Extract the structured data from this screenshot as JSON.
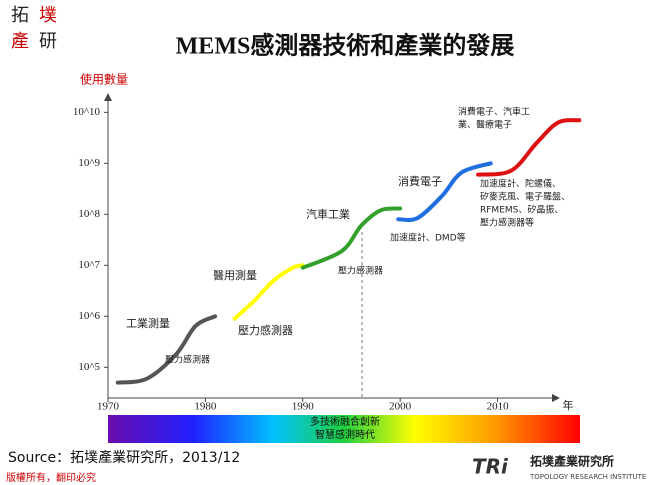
{
  "slide": {
    "logo_top": [
      "拓",
      "墣",
      "產",
      "研"
    ],
    "source": "Source：拓墣產業研究所，2013/12",
    "copyright": "版權所有，翻印必究",
    "logo_mark": "TRi",
    "logo_name": "拓墣產業研究所",
    "logo_en": "TOPOLOGY RESEARCH INSTITUTE"
  },
  "chart_data": {
    "type": "line",
    "title": "MEMS感測器技術和產業的發展",
    "y_label": "使用數量",
    "x_label": "年",
    "log_y": true,
    "xlim": [
      1970,
      2016
    ],
    "xticks": [
      1970,
      1980,
      1990,
      2000,
      2010
    ],
    "ylim": [
      25000,
      20000000000
    ],
    "yticks": [
      {
        "value": 100000,
        "label": "10^5"
      },
      {
        "value": 1000000,
        "label": "10^6"
      },
      {
        "value": 10000000,
        "label": "10^7"
      },
      {
        "value": 100000000,
        "label": "10^8"
      },
      {
        "value": 1000000000,
        "label": "10^9"
      },
      {
        "value": 10000000000,
        "label": "10^10"
      }
    ],
    "series": [
      {
        "color": "#555555",
        "x": [
          1971,
          1974,
          1977,
          1979,
          1981
        ],
        "values": [
          50000,
          60000,
          180000,
          650000,
          1000000
        ]
      },
      {
        "color": "#ffff00",
        "x": [
          1983,
          1985,
          1987,
          1989,
          1990
        ],
        "values": [
          900000,
          2000000,
          5000000,
          9000000,
          10000000
        ]
      },
      {
        "color": "#33a02c",
        "x": [
          1990,
          1994,
          1996,
          1998,
          2000
        ],
        "values": [
          9000000,
          19000000,
          60000000,
          120000000,
          130000000
        ]
      },
      {
        "color": "#1f6fe0",
        "x": [
          1999.8,
          2001.8,
          2004.3,
          2006.3,
          2009.3
        ],
        "values": [
          80000000,
          85000000,
          230000000,
          660000000,
          1000000000
        ]
      },
      {
        "color": "#dd1111",
        "x": [
          2008,
          2011.4,
          2014,
          2016.2,
          2018.4
        ],
        "values": [
          600000000,
          720000000,
          2500000000,
          6300000000,
          7000000000
        ]
      }
    ],
    "annotations": [
      {
        "lines": [
          "工業測量"
        ]
      },
      {
        "lines": [
          "壓力感測器"
        ]
      },
      {
        "lines": [
          "醫用測量"
        ]
      },
      {
        "lines": [
          "壓力感測器"
        ]
      },
      {
        "lines": [
          "汽車工業"
        ]
      },
      {
        "lines": [
          "壓力感測器"
        ]
      },
      {
        "lines": [
          "消費電子"
        ]
      },
      {
        "lines": [
          "加速度計、DMD等"
        ]
      },
      {
        "lines": [
          "消費電子、汽車工",
          "業、醫療電子"
        ]
      },
      {
        "lines": [
          "加速度計、陀螺儀、",
          "矽麥克風、電子羅盤、",
          "RFMEMS、矽晶振、",
          "壓力感測器等"
        ]
      }
    ],
    "band_text": [
      "多技術融合創新",
      "智慧感測時代"
    ]
  }
}
